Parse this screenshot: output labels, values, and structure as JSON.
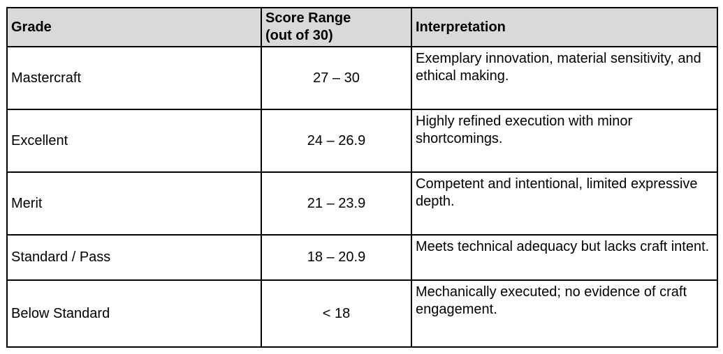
{
  "table": {
    "headers": {
      "grade": "Grade",
      "score_range": "Score Range\n(out of 30)",
      "interpretation": "Interpretation"
    },
    "rows": [
      {
        "grade": "Mastercraft",
        "score_range": "27 – 30",
        "interpretation": "Exemplary innovation, material sensitivity, and ethical making."
      },
      {
        "grade": "Excellent",
        "score_range": "24 – 26.9",
        "interpretation": "Highly refined execution with minor shortcomings."
      },
      {
        "grade": "Merit",
        "score_range": "21 – 23.9",
        "interpretation": "Competent and intentional, limited expressive depth."
      },
      {
        "grade": "Standard / Pass",
        "score_range": "18 – 20.9",
        "interpretation": "Meets technical adequacy but lacks craft intent."
      },
      {
        "grade": "Below Standard",
        "score_range": "< 18",
        "interpretation": "Mechanically executed; no evidence of craft engagement."
      }
    ],
    "colors": {
      "header_bg": "#d9d9d9",
      "border": "#000000",
      "text": "#000000",
      "page_bg": "#ffffff"
    }
  }
}
